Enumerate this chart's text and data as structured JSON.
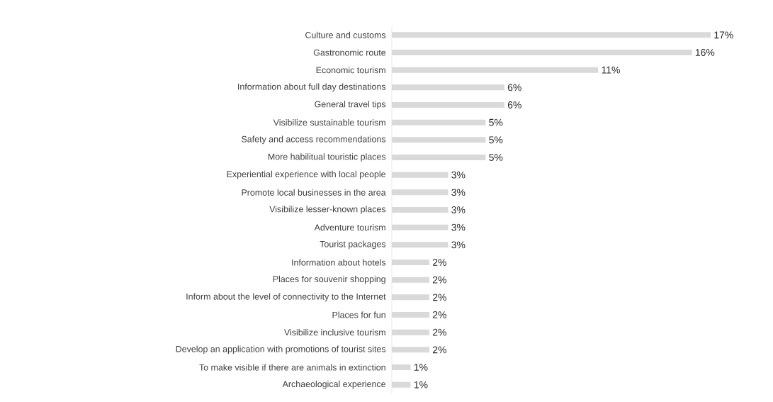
{
  "chart_data": {
    "type": "bar",
    "orientation": "horizontal",
    "color": "#d9d9d9",
    "categories": [
      "Culture and customs",
      "Gastronomic route",
      "Economic tourism",
      "Information about full day destinations",
      "General travel tips",
      "Visibilize sustainable tourism",
      "Safety and access recommendations",
      "More habilitual touristic places",
      "Experiential experience with local people",
      "Promote local businesses in the area",
      "Visibilize lesser-known places",
      "Adventure tourism",
      "Tourist packages",
      "Information about hotels",
      "Places for souvenir shopping",
      "Inform about the level of connectivity to the Internet",
      "Places for fun",
      "Visibilize inclusive tourism",
      "Develop an application with promotions of tourist sites",
      "To make visible if there are animals in extinction",
      "Archaeological experience"
    ],
    "values": [
      17,
      16,
      11,
      6,
      6,
      5,
      5,
      5,
      3,
      3,
      3,
      3,
      3,
      2,
      2,
      2,
      2,
      2,
      2,
      1,
      1
    ],
    "value_labels": [
      "17%",
      "16%",
      "11%",
      "6%",
      "6%",
      "5%",
      "5%",
      "5%",
      "3%",
      "3%",
      "3%",
      "3%",
      "3%",
      "2%",
      "2%",
      "2%",
      "2%",
      "2%",
      "2%",
      "1%",
      "1%"
    ]
  }
}
